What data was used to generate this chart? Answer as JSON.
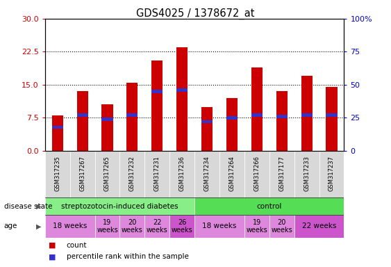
{
  "title": "GDS4025 / 1378672_at",
  "samples": [
    "GSM317235",
    "GSM317267",
    "GSM317265",
    "GSM317232",
    "GSM317231",
    "GSM317236",
    "GSM317234",
    "GSM317264",
    "GSM317266",
    "GSM317177",
    "GSM317233",
    "GSM317237"
  ],
  "counts": [
    8.0,
    13.5,
    10.5,
    15.5,
    20.5,
    23.5,
    10.0,
    12.0,
    19.0,
    13.5,
    17.0,
    14.5
  ],
  "percentile_ranks": [
    18,
    27,
    24,
    27,
    45,
    46,
    22,
    25,
    27,
    26,
    27,
    27
  ],
  "ylim_left": [
    0,
    30
  ],
  "ylim_right": [
    0,
    100
  ],
  "yticks_left": [
    0,
    7.5,
    15,
    22.5,
    30
  ],
  "yticks_right": [
    0,
    25,
    50,
    75,
    100
  ],
  "bar_color": "#cc0000",
  "percentile_color": "#3333cc",
  "disease_groups": [
    {
      "label": "streptozotocin-induced diabetes",
      "start": 0,
      "end": 6,
      "color": "#88ee88"
    },
    {
      "label": "control",
      "start": 6,
      "end": 12,
      "color": "#55dd55"
    }
  ],
  "age_groups": [
    {
      "label": "18 weeks",
      "start": 0,
      "end": 2,
      "color": "#dd88dd",
      "fontsize": 7.5
    },
    {
      "label": "19\nweeks",
      "start": 2,
      "end": 3,
      "color": "#dd88dd",
      "fontsize": 7
    },
    {
      "label": "20\nweeks",
      "start": 3,
      "end": 4,
      "color": "#dd88dd",
      "fontsize": 7
    },
    {
      "label": "22\nweeks",
      "start": 4,
      "end": 5,
      "color": "#dd88dd",
      "fontsize": 7
    },
    {
      "label": "26\nweeks",
      "start": 5,
      "end": 6,
      "color": "#cc55cc",
      "fontsize": 7
    },
    {
      "label": "18 weeks",
      "start": 6,
      "end": 8,
      "color": "#dd88dd",
      "fontsize": 7.5
    },
    {
      "label": "19\nweeks",
      "start": 8,
      "end": 9,
      "color": "#dd88dd",
      "fontsize": 7
    },
    {
      "label": "20\nweeks",
      "start": 9,
      "end": 10,
      "color": "#dd88dd",
      "fontsize": 7
    },
    {
      "label": "22 weeks",
      "start": 10,
      "end": 12,
      "color": "#cc55cc",
      "fontsize": 7.5
    }
  ],
  "legend_items": [
    {
      "label": "count",
      "color": "#cc0000"
    },
    {
      "label": "percentile rank within the sample",
      "color": "#3333cc"
    }
  ],
  "xlabel_disease": "disease state",
  "xlabel_age": "age",
  "left_ylabel_color": "#cc0000",
  "right_ylabel_color": "#0000cc",
  "bar_width": 0.45,
  "pct_bar_height": 0.7
}
